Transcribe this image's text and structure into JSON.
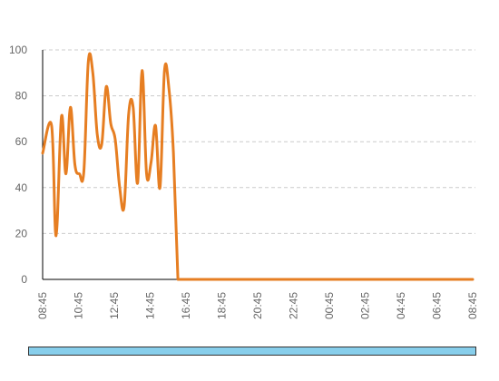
{
  "chart_data": {
    "type": "line",
    "title": "",
    "xlabel": "",
    "ylabel": "",
    "ylim": [
      0,
      100
    ],
    "yticks": [
      0,
      20,
      40,
      60,
      80,
      100
    ],
    "x_tick_labels": [
      "08:45",
      "10:45",
      "12:45",
      "14:45",
      "16:45",
      "18:45",
      "20:45",
      "22:45",
      "00:45",
      "02:45",
      "04:45",
      "06:45",
      "08:45"
    ],
    "x_range_hours": [
      0,
      24
    ],
    "grid": true,
    "legend": "none",
    "series": [
      {
        "color": "#e67e22",
        "points": [
          [
            0.0,
            55
          ],
          [
            0.5,
            67
          ],
          [
            0.75,
            19
          ],
          [
            1.05,
            71
          ],
          [
            1.3,
            46
          ],
          [
            1.55,
            75
          ],
          [
            1.8,
            50
          ],
          [
            2.05,
            46
          ],
          [
            2.3,
            47
          ],
          [
            2.55,
            95
          ],
          [
            2.8,
            90
          ],
          [
            3.05,
            63
          ],
          [
            3.3,
            59
          ],
          [
            3.55,
            84
          ],
          [
            3.8,
            68
          ],
          [
            4.05,
            61
          ],
          [
            4.3,
            40
          ],
          [
            4.55,
            32
          ],
          [
            4.8,
            72
          ],
          [
            5.05,
            75
          ],
          [
            5.3,
            42
          ],
          [
            5.55,
            91
          ],
          [
            5.8,
            46
          ],
          [
            6.05,
            51
          ],
          [
            6.3,
            67
          ],
          [
            6.55,
            40
          ],
          [
            6.8,
            91
          ],
          [
            7.05,
            83
          ],
          [
            7.3,
            55
          ],
          [
            7.55,
            0
          ],
          [
            24.0,
            0
          ]
        ]
      }
    ]
  },
  "scrollbar": {
    "fill_color": "#87ceeb",
    "border_color": "#333333",
    "fraction_visible": 1.0
  }
}
